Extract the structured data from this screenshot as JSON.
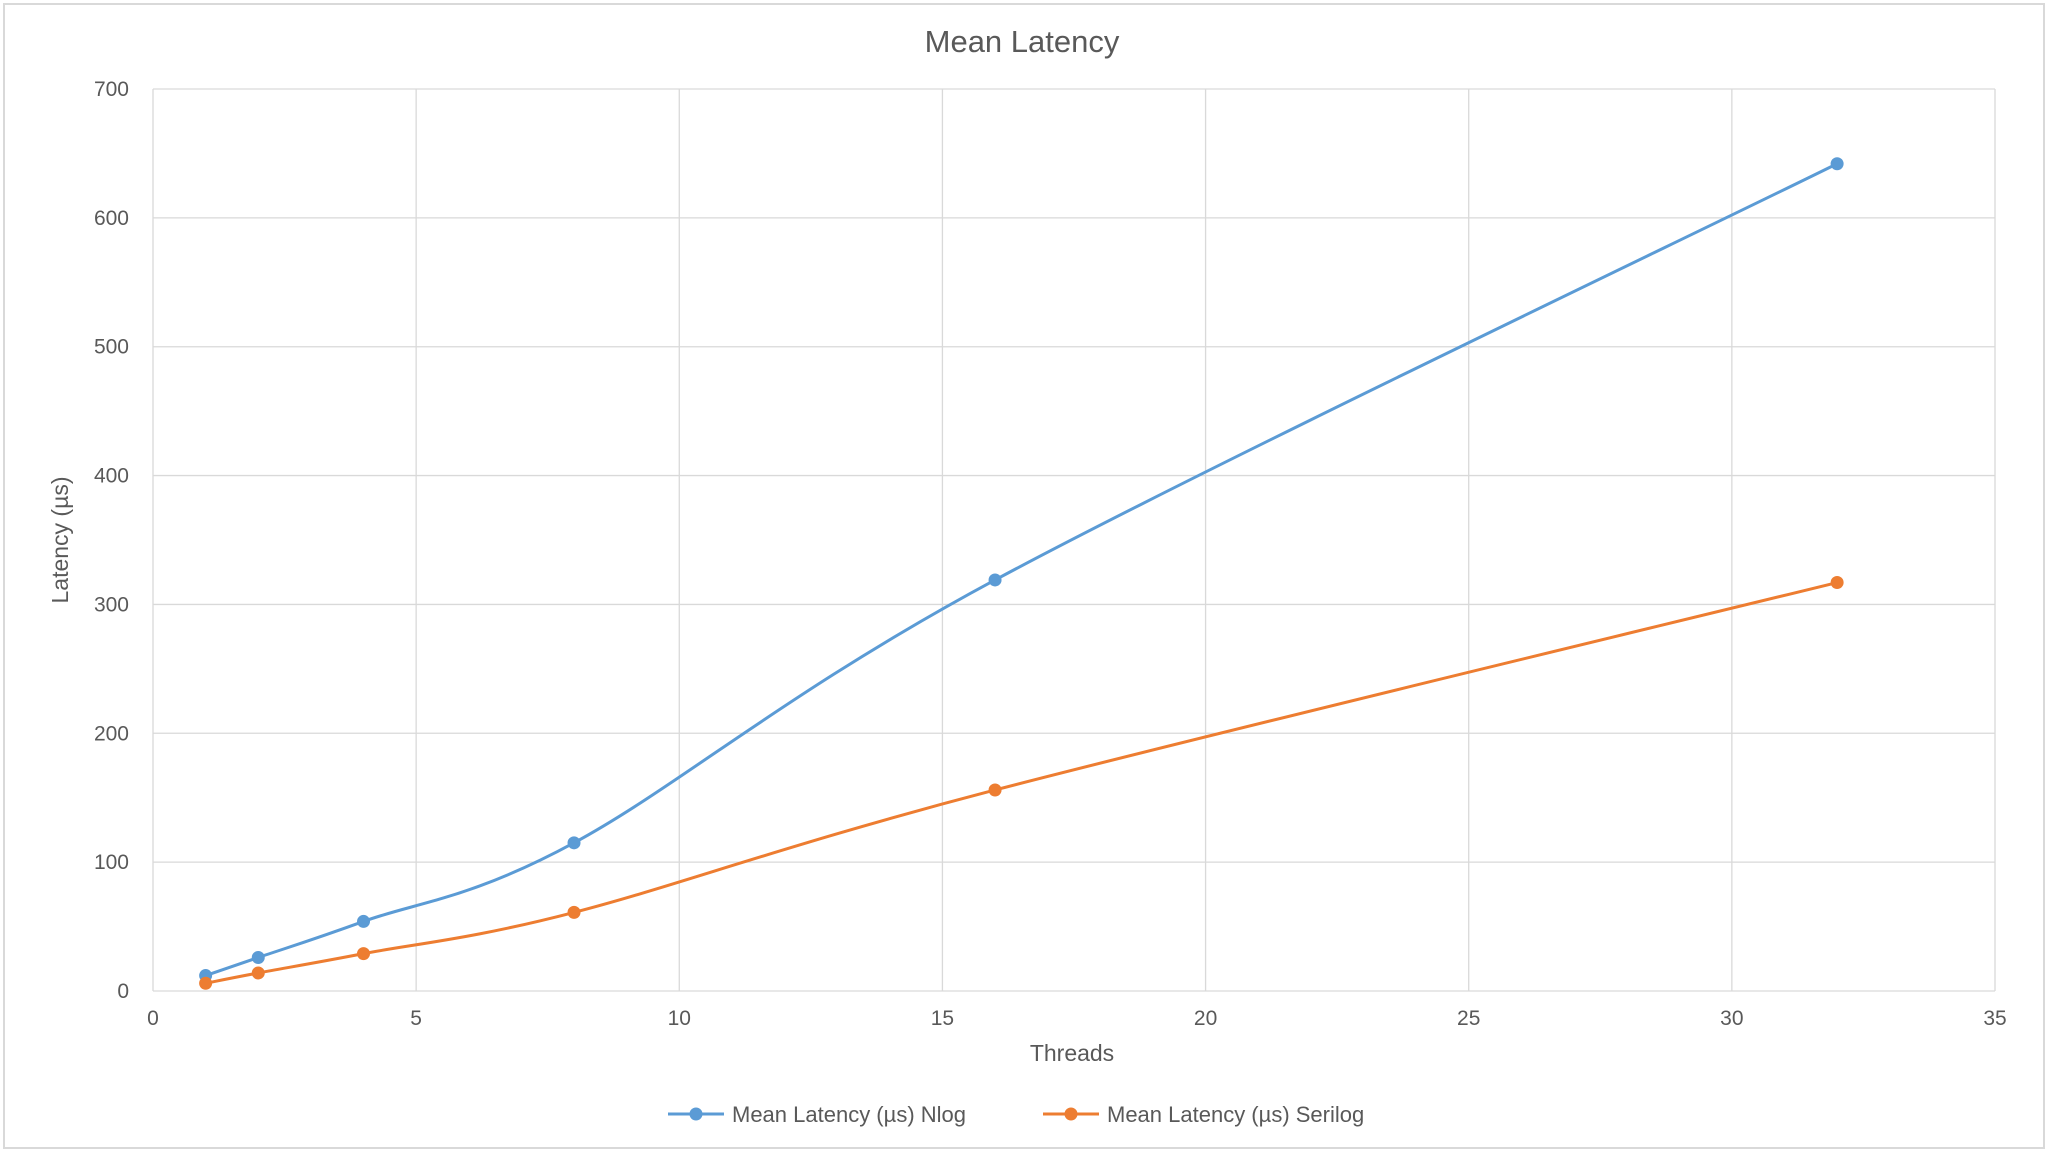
{
  "chart_data": {
    "type": "scatter",
    "mode": "lines+markers",
    "title": "Mean Latency",
    "xlabel": "Threads",
    "ylabel": "Latency (µs)",
    "xlim": [
      0,
      35
    ],
    "ylim": [
      0,
      700
    ],
    "xticks": [
      0,
      5,
      10,
      15,
      20,
      25,
      30,
      35
    ],
    "yticks": [
      0,
      100,
      200,
      300,
      400,
      500,
      600,
      700
    ],
    "grid": true,
    "smooth": true,
    "legend_position": "bottom",
    "series": [
      {
        "name": "Mean Latency (µs) Nlog",
        "color": "#5b9bd5",
        "x": [
          1,
          2,
          4,
          8,
          16,
          32
        ],
        "y": [
          12,
          26,
          54,
          115,
          319,
          642
        ]
      },
      {
        "name": "Mean Latency (µs) Serilog",
        "color": "#ed7d31",
        "x": [
          1,
          2,
          4,
          8,
          16,
          32
        ],
        "y": [
          6,
          14,
          29,
          61,
          156,
          317
        ]
      }
    ]
  }
}
